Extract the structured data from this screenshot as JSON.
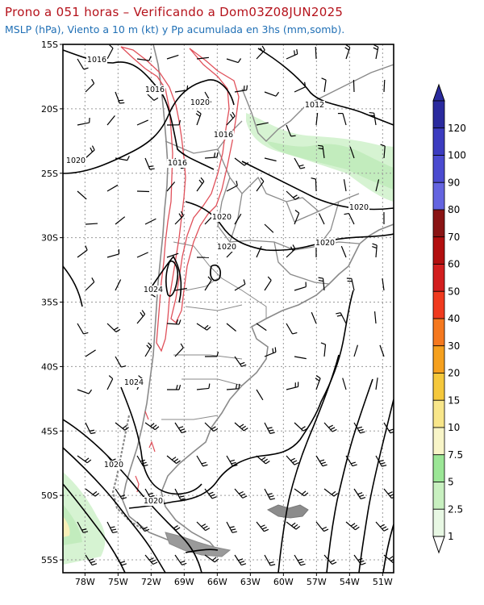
{
  "header": {
    "title": "Prono a 051 horas – Verificando a Dom03Z08JUN2025",
    "subtitle": "MSLP (hPa), Viento a 10 m (kt) y Pp acumulada en 3hs (mm,somb)."
  },
  "map": {
    "region": "Southern South America",
    "lat_range": [
      -56,
      -15
    ],
    "lon_range": [
      -80,
      -50
    ],
    "lat_ticks": [
      "15S",
      "20S",
      "25S",
      "30S",
      "35S",
      "40S",
      "45S",
      "50S",
      "55S"
    ],
    "lon_ticks": [
      "78W",
      "75W",
      "72W",
      "69W",
      "66W",
      "63W",
      "60W",
      "57W",
      "54W",
      "51W"
    ],
    "isobar_labels": [
      "1016",
      "1016",
      "1020",
      "1012",
      "1016",
      "1020",
      "1016",
      "1020",
      "1020",
      "1020",
      "1020",
      "1024",
      "1024",
      "1020",
      "1020"
    ],
    "colors": {
      "isobar": "#000000",
      "coast": "#8a8a8a",
      "terrain_contour": "#e0505a",
      "precip_light": "#b9eeb3"
    }
  },
  "colorbar": {
    "labels": [
      "120",
      "100",
      "90",
      "80",
      "70",
      "60",
      "50",
      "40",
      "30",
      "20",
      "15",
      "10",
      "7.5",
      "5",
      "2.5",
      "1"
    ],
    "colors": [
      "#2a2a9e",
      "#3c3cc0",
      "#4b4bd0",
      "#6464e0",
      "#8a1414",
      "#b20f0f",
      "#d21e1e",
      "#f03a1e",
      "#f5781e",
      "#f5a01e",
      "#f5c83c",
      "#f8e68a",
      "#f8f5c8",
      "#9be696",
      "#c8f0c0",
      "#e8f8e4"
    ]
  }
}
